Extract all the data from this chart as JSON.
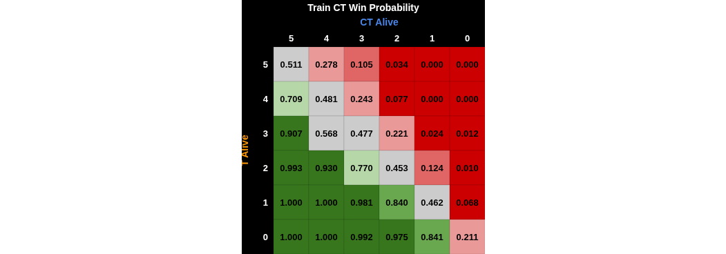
{
  "chart_data": {
    "type": "heatmap",
    "title": "Train CT Win Probability",
    "xlabel": "CT Alive",
    "ylabel": "T Alive",
    "categories": [
      "5",
      "4",
      "3",
      "2",
      "1",
      "0"
    ],
    "y_categories": [
      "5",
      "4",
      "3",
      "2",
      "1",
      "0"
    ],
    "cells": [
      [
        0.511,
        0.278,
        0.105,
        0.034,
        0.0,
        0.0
      ],
      [
        0.709,
        0.481,
        0.243,
        0.077,
        0.0,
        0.0
      ],
      [
        0.907,
        0.568,
        0.477,
        0.221,
        0.024,
        0.012
      ],
      [
        0.993,
        0.93,
        0.77,
        0.453,
        0.124,
        0.01
      ],
      [
        1.0,
        1.0,
        0.981,
        0.84,
        0.462,
        0.068
      ],
      [
        1.0,
        1.0,
        0.992,
        0.975,
        0.841,
        0.211
      ]
    ],
    "cell_labels": [
      [
        "0.511",
        "0.278",
        "0.105",
        "0.034",
        "0.000",
        "0.000"
      ],
      [
        "0.709",
        "0.481",
        "0.243",
        "0.077",
        "0.000",
        "0.000"
      ],
      [
        "0.907",
        "0.568",
        "0.477",
        "0.221",
        "0.024",
        "0.012"
      ],
      [
        "0.993",
        "0.930",
        "0.770",
        "0.453",
        "0.124",
        "0.010"
      ],
      [
        "1.000",
        "1.000",
        "0.981",
        "0.840",
        "0.462",
        "0.068"
      ],
      [
        "1.000",
        "1.000",
        "0.992",
        "0.975",
        "0.841",
        "0.211"
      ]
    ]
  }
}
